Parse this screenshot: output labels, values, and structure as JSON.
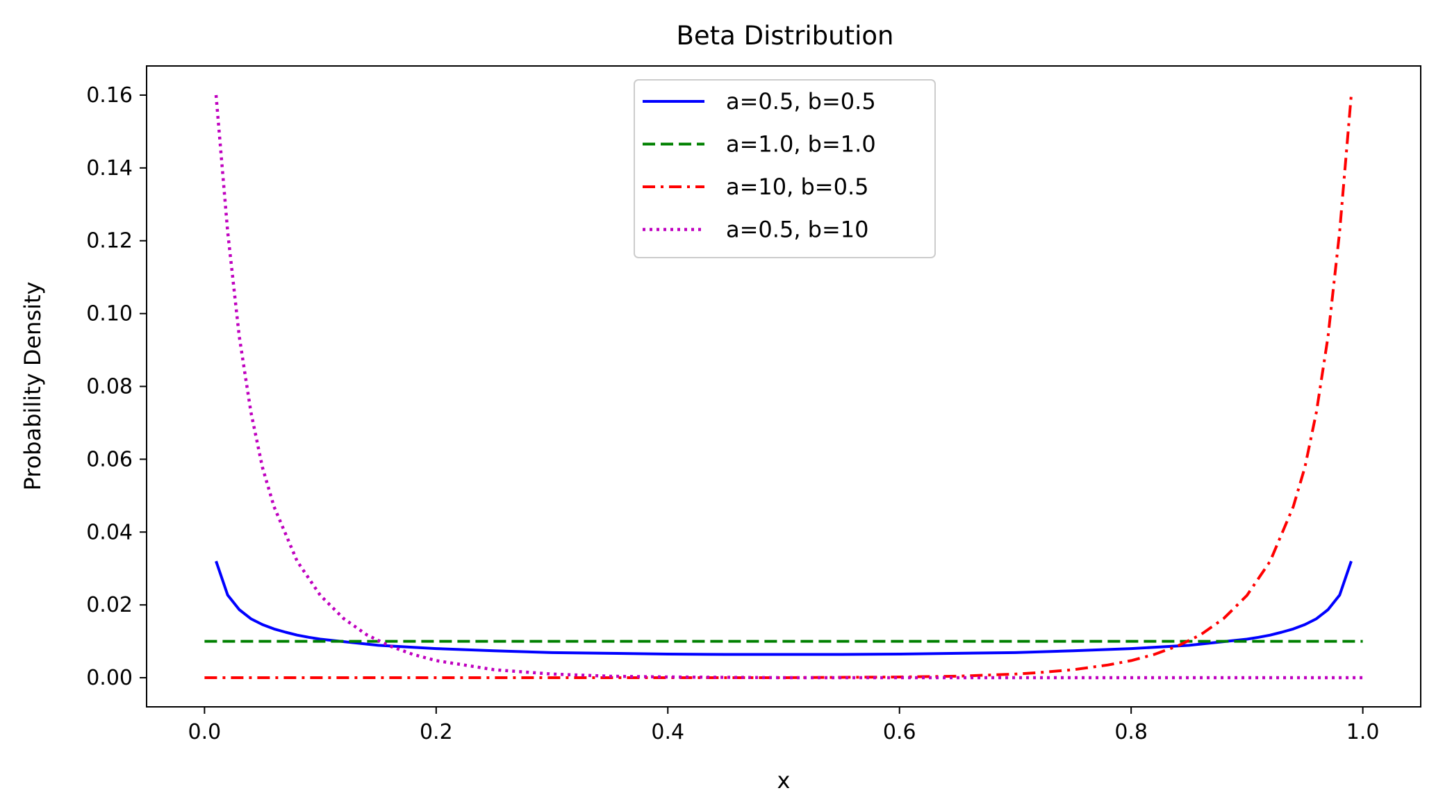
{
  "chart_data": {
    "type": "line",
    "title": "Beta Distribution",
    "xlabel": "x",
    "ylabel": "Probability Density",
    "xlim": [
      -0.05,
      1.05
    ],
    "ylim": [
      -0.008,
      0.168
    ],
    "x_ticks": [
      0.0,
      0.2,
      0.4,
      0.6,
      0.8,
      1.0
    ],
    "x_tick_labels": [
      "0.0",
      "0.2",
      "0.4",
      "0.6",
      "0.8",
      "1.0"
    ],
    "y_ticks": [
      0.0,
      0.02,
      0.04,
      0.06,
      0.08,
      0.1,
      0.12,
      0.14,
      0.16
    ],
    "y_tick_labels": [
      "0.00",
      "0.02",
      "0.04",
      "0.06",
      "0.08",
      "0.10",
      "0.12",
      "0.14",
      "0.16"
    ],
    "grid": false,
    "legend_position": "upper center",
    "series": [
      {
        "name": "a=0.5, b=0.5",
        "color": "#0000ff",
        "style": "solid",
        "x": [
          0.01,
          0.02,
          0.03,
          0.04,
          0.05,
          0.06,
          0.07,
          0.08,
          0.09,
          0.1,
          0.15,
          0.2,
          0.25,
          0.3,
          0.35,
          0.4,
          0.45,
          0.5,
          0.55,
          0.6,
          0.65,
          0.7,
          0.75,
          0.8,
          0.85,
          0.9,
          0.91,
          0.92,
          0.93,
          0.94,
          0.95,
          0.96,
          0.97,
          0.98,
          0.99
        ],
        "y": [
          0.032,
          0.0227,
          0.0187,
          0.0162,
          0.0146,
          0.0134,
          0.0125,
          0.0117,
          0.0111,
          0.0106,
          0.0089,
          0.008,
          0.0074,
          0.0069,
          0.0067,
          0.0065,
          0.0064,
          0.0064,
          0.0064,
          0.0065,
          0.0067,
          0.0069,
          0.0074,
          0.008,
          0.0089,
          0.0106,
          0.0111,
          0.0117,
          0.0125,
          0.0134,
          0.0146,
          0.0162,
          0.0187,
          0.0227,
          0.032
        ]
      },
      {
        "name": "a=1.0, b=1.0",
        "color": "#008000",
        "style": "dashed",
        "x": [
          0.0,
          1.0
        ],
        "y": [
          0.01,
          0.01
        ]
      },
      {
        "name": "a=10, b=0.5",
        "color": "#ff0000",
        "style": "dashdot",
        "x": [
          0.0,
          0.1,
          0.2,
          0.3,
          0.4,
          0.45,
          0.5,
          0.55,
          0.6,
          0.65,
          0.7,
          0.72,
          0.75,
          0.78,
          0.8,
          0.82,
          0.84,
          0.86,
          0.88,
          0.9,
          0.92,
          0.94,
          0.95,
          0.96,
          0.97,
          0.98,
          0.99
        ],
        "y": [
          0.0,
          0.0,
          0.0,
          0.0,
          0.0,
          0.0,
          0.0,
          0.0001,
          0.0002,
          0.0004,
          0.001,
          0.0014,
          0.0022,
          0.0035,
          0.0047,
          0.0064,
          0.0087,
          0.0118,
          0.0163,
          0.0226,
          0.032,
          0.047,
          0.0578,
          0.073,
          0.0937,
          0.1225,
          0.16
        ]
      },
      {
        "name": "a=0.5, b=10",
        "color": "#bf00bf",
        "style": "dotted",
        "x": [
          0.01,
          0.02,
          0.03,
          0.04,
          0.05,
          0.06,
          0.08,
          0.1,
          0.12,
          0.14,
          0.16,
          0.18,
          0.2,
          0.25,
          0.3,
          0.35,
          0.4,
          0.45,
          0.5,
          0.6,
          0.7,
          0.8,
          0.9,
          1.0
        ],
        "y": [
          0.16,
          0.1225,
          0.0937,
          0.073,
          0.0578,
          0.047,
          0.032,
          0.0226,
          0.0163,
          0.0118,
          0.0087,
          0.0064,
          0.0047,
          0.0022,
          0.001,
          0.0004,
          0.0002,
          0.0001,
          0.0,
          0.0,
          0.0,
          0.0,
          0.0,
          0.0
        ]
      }
    ]
  }
}
